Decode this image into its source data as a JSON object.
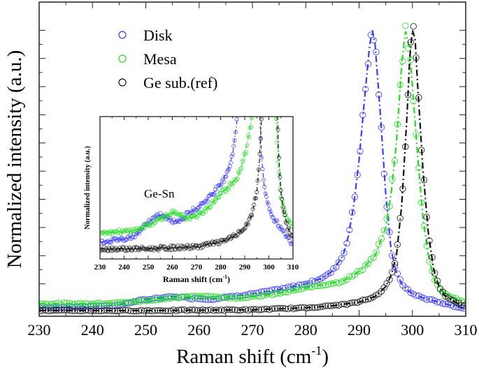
{
  "chart_data": {
    "type": "scatter",
    "xlabel": "Raman shift (cm",
    "xlabel_sup": "-1",
    "xlabel_close": ")",
    "ylabel": "Normalized intensity (a.u.)",
    "xlim": [
      230,
      310
    ],
    "ylim": [
      -0.015,
      1.1
    ],
    "x_ticks": [
      "230",
      "240",
      "250",
      "260",
      "270",
      "280",
      "290",
      "300",
      "310"
    ],
    "y_ticks_labeled": false,
    "grid": false,
    "legend_position": "top-left",
    "series": [
      {
        "name": "Disk",
        "color": "#3a3aff",
        "marker": "open-circle",
        "fit_line": "dash-dot",
        "x": [
          230,
          240,
          245,
          250,
          255,
          258,
          262,
          266,
          270,
          275,
          280,
          283,
          285,
          287,
          288,
          289,
          290,
          291,
          292,
          292.5,
          293,
          294,
          295,
          296,
          297,
          298,
          299,
          300,
          302,
          304,
          306,
          308,
          310
        ],
        "y": [
          0.015,
          0.02,
          0.025,
          0.045,
          0.055,
          0.05,
          0.045,
          0.055,
          0.065,
          0.08,
          0.1,
          0.12,
          0.145,
          0.2,
          0.27,
          0.38,
          0.54,
          0.75,
          0.95,
          1.0,
          0.95,
          0.7,
          0.42,
          0.22,
          0.14,
          0.1,
          0.08,
          0.065,
          0.05,
          0.04,
          0.03,
          0.02,
          0.012
        ]
      },
      {
        "name": "Mesa",
        "color": "#22dd22",
        "marker": "open-circle",
        "fit_line": "dash-dot",
        "x": [
          230,
          240,
          245,
          250,
          255,
          260,
          265,
          268,
          272,
          276,
          280,
          284,
          287,
          289,
          291,
          293,
          294,
          295,
          296,
          297,
          298,
          298.7,
          299.5,
          300,
          301,
          302,
          303,
          304,
          305,
          307,
          310
        ],
        "y": [
          0.03,
          0.03,
          0.033,
          0.04,
          0.05,
          0.058,
          0.052,
          0.05,
          0.058,
          0.07,
          0.085,
          0.1,
          0.11,
          0.13,
          0.16,
          0.2,
          0.25,
          0.3,
          0.42,
          0.6,
          0.88,
          1.0,
          0.93,
          0.8,
          0.55,
          0.33,
          0.2,
          0.12,
          0.085,
          0.055,
          0.035
        ]
      },
      {
        "name": "Ge sub.(ref)",
        "color": "#111111",
        "marker": "open-circle",
        "fit_line": "dash-dot",
        "x": [
          230,
          250,
          270,
          280,
          285,
          290,
          293,
          295,
          296,
          297,
          298,
          299,
          299.5,
          300,
          300.5,
          301,
          302,
          303,
          304,
          305,
          306,
          308,
          310
        ],
        "y": [
          0.005,
          0.005,
          0.008,
          0.015,
          0.022,
          0.035,
          0.055,
          0.09,
          0.13,
          0.2,
          0.38,
          0.7,
          0.9,
          1.0,
          0.97,
          0.8,
          0.5,
          0.28,
          0.15,
          0.09,
          0.06,
          0.035,
          0.02
        ]
      }
    ],
    "inset": {
      "xlabel": "Raman shift (cm",
      "xlabel_sup": "-1",
      "xlabel_close": ")",
      "ylabel": "Normalized intensity (a.u.)",
      "xlim": [
        230,
        310
      ],
      "ylim": [
        -0.01,
        0.2
      ],
      "x_ticks": [
        "230",
        "240",
        "250",
        "260",
        "270",
        "280",
        "290",
        "300",
        "310"
      ],
      "annotation": "Ge-Sn"
    }
  }
}
